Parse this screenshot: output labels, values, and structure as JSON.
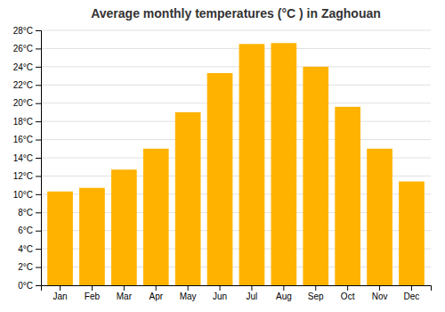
{
  "chart_data": {
    "type": "bar",
    "title": "Average monthly temperatures (°C ) in Zaghouan",
    "categories": [
      "Jan",
      "Feb",
      "Mar",
      "Apr",
      "May",
      "Jun",
      "Jul",
      "Aug",
      "Sep",
      "Oct",
      "Nov",
      "Dec"
    ],
    "values": [
      10.3,
      10.7,
      12.7,
      15.0,
      19.0,
      23.3,
      26.5,
      26.6,
      24.0,
      19.6,
      15.0,
      11.4
    ],
    "color": "#FFB300",
    "ylim": [
      0,
      28
    ],
    "yticks": [
      {
        "value": 0,
        "label": "0°C"
      },
      {
        "value": 2,
        "label": "2°C"
      },
      {
        "value": 4,
        "label": "4°C"
      },
      {
        "value": 6,
        "label": "6°C"
      },
      {
        "value": 8,
        "label": "8°C"
      },
      {
        "value": 10,
        "label": "10°C"
      },
      {
        "value": 12,
        "label": "12°C"
      },
      {
        "value": 14,
        "label": "14°C"
      },
      {
        "value": 16,
        "label": "16°C"
      },
      {
        "value": 18,
        "label": "18°C"
      },
      {
        "value": 20,
        "label": "20°C"
      },
      {
        "value": 22,
        "label": "22°C"
      },
      {
        "value": 24,
        "label": "24°C"
      },
      {
        "value": 26,
        "label": "26°C"
      },
      {
        "value": 28,
        "label": "28°C"
      }
    ],
    "grid": true
  }
}
